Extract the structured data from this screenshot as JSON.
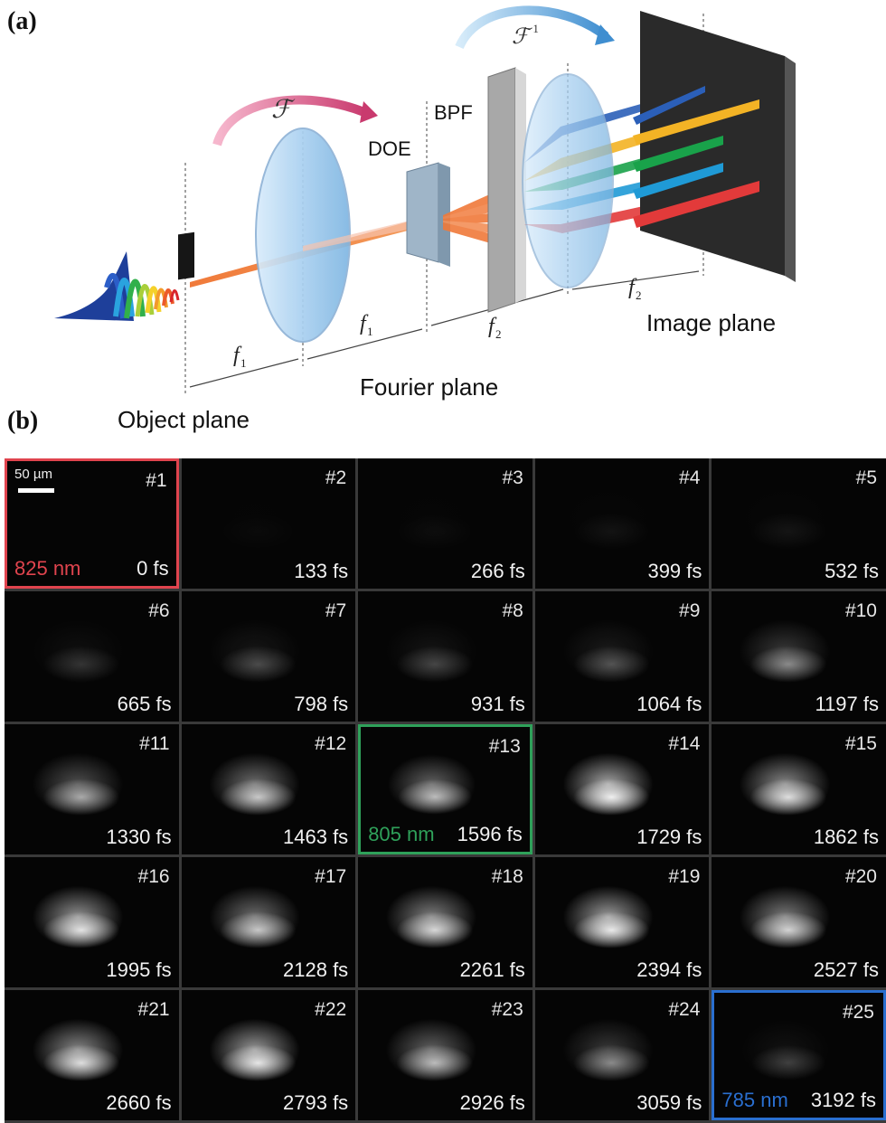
{
  "panel_a": {
    "label": "(a)",
    "labels": {
      "bpf": "BPF",
      "doe": "DOE",
      "f1": "f",
      "f1_sub": "1",
      "f2": "f",
      "f2_sub": "2",
      "fourier_plane": "Fourier plane",
      "object_plane": "Object plane",
      "image_plane": "Image plane",
      "ft": "ℱ",
      "ift": "ℱ",
      "ift_sup": "−1"
    },
    "beam_colors": [
      "#2b5fb8",
      "#f3b325",
      "#19a24a",
      "#1f9ad6",
      "#e23a3a"
    ],
    "main_beam_color": "#f07a3a"
  },
  "panel_b": {
    "label": "(b)",
    "scale_bar": "50 µm",
    "frames": [
      {
        "num": "#1",
        "time": "0 fs",
        "wavelength": "825 nm",
        "highlight": "#e0444e",
        "intensity": 0.0
      },
      {
        "num": "#2",
        "time": "133 fs",
        "intensity": 0.02
      },
      {
        "num": "#3",
        "time": "266 fs",
        "intensity": 0.03
      },
      {
        "num": "#4",
        "time": "399 fs",
        "intensity": 0.05
      },
      {
        "num": "#5",
        "time": "532 fs",
        "intensity": 0.06
      },
      {
        "num": "#6",
        "time": "665 fs",
        "intensity": 0.18
      },
      {
        "num": "#7",
        "time": "798 fs",
        "intensity": 0.26
      },
      {
        "num": "#8",
        "time": "931 fs",
        "intensity": 0.24
      },
      {
        "num": "#9",
        "time": "1064 fs",
        "intensity": 0.3
      },
      {
        "num": "#10",
        "time": "1197 fs",
        "intensity": 0.5
      },
      {
        "num": "#11",
        "time": "1330 fs",
        "intensity": 0.62
      },
      {
        "num": "#12",
        "time": "1463 fs",
        "intensity": 0.75
      },
      {
        "num": "#13",
        "time": "1596 fs",
        "wavelength": "805 nm",
        "highlight": "#2fa15a",
        "intensity": 0.7
      },
      {
        "num": "#14",
        "time": "1729 fs",
        "intensity": 0.95
      },
      {
        "num": "#15",
        "time": "1862 fs",
        "intensity": 0.85
      },
      {
        "num": "#16",
        "time": "1995 fs",
        "intensity": 0.88
      },
      {
        "num": "#17",
        "time": "2128 fs",
        "intensity": 0.75
      },
      {
        "num": "#18",
        "time": "2261 fs",
        "intensity": 0.82
      },
      {
        "num": "#19",
        "time": "2394 fs",
        "intensity": 0.92
      },
      {
        "num": "#20",
        "time": "2527 fs",
        "intensity": 0.8
      },
      {
        "num": "#21",
        "time": "2660 fs",
        "intensity": 0.85
      },
      {
        "num": "#22",
        "time": "2793 fs",
        "intensity": 0.9
      },
      {
        "num": "#23",
        "time": "2926 fs",
        "intensity": 0.7
      },
      {
        "num": "#24",
        "time": "3059 fs",
        "intensity": 0.5
      },
      {
        "num": "#25",
        "time": "3192 fs",
        "wavelength": "785 nm",
        "highlight": "#2a6fd0",
        "intensity": 0.22
      }
    ]
  }
}
